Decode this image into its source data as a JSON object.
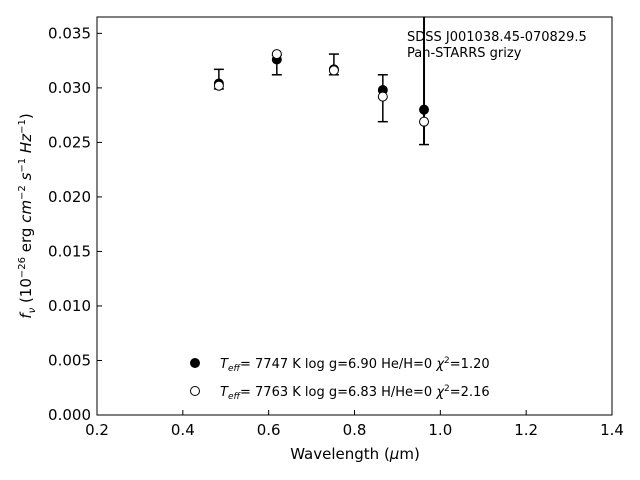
{
  "chart_data": {
    "type": "scatter",
    "xlabel": "Wavelength (μm)",
    "ylabel": "f_ν (10^-26 erg cm^-2 s^-1 Hz^-1)",
    "xlim": [
      0.2,
      1.4
    ],
    "ylim": [
      0.0,
      0.0365
    ],
    "xticks": [
      0.2,
      0.4,
      0.6,
      0.8,
      1.0,
      1.2,
      1.4
    ],
    "xtick_labels": [
      "0.2",
      "0.4",
      "0.6",
      "0.8",
      "1.0",
      "1.2",
      "1.4"
    ],
    "yticks": [
      0.0,
      0.005,
      0.01,
      0.015,
      0.02,
      0.025,
      0.03,
      0.035
    ],
    "ytick_labels": [
      "0.000",
      "0.005",
      "0.010",
      "0.015",
      "0.020",
      "0.025",
      "0.030",
      "0.035"
    ],
    "grid": false,
    "annotation": {
      "line1": "SDSS J001038.45-070829.5",
      "line2": "Pan-STARRS grizy"
    },
    "observed": {
      "x": [
        0.484,
        0.619,
        0.752,
        0.866,
        0.962
      ],
      "y": [
        0.0307,
        0.0325,
        0.0316,
        0.0298,
        0.028
      ],
      "yerr_low": [
        0.0299,
        0.0312,
        0.0312,
        0.0269,
        0.0248
      ],
      "yerr_high": [
        0.0317,
        0.033,
        0.0331,
        0.0312,
        0.0365
      ]
    },
    "series": [
      {
        "name": "He/H=0",
        "marker": "filled-circle",
        "x": [
          0.484,
          0.619,
          0.752,
          0.866,
          0.962
        ],
        "y": [
          0.0304,
          0.0326,
          0.0317,
          0.0298,
          0.028
        ]
      },
      {
        "name": "H/He=0",
        "marker": "open-circle",
        "x": [
          0.484,
          0.619,
          0.752,
          0.866,
          0.962
        ],
        "y": [
          0.0302,
          0.0331,
          0.0316,
          0.0292,
          0.0269
        ]
      }
    ],
    "legend": {
      "placement": "bottom-center",
      "entries": [
        {
          "teff": "7747 K",
          "logg": "log g=6.90",
          "comp": "He/H=0",
          "chi2": "=1.20"
        },
        {
          "teff": "7763 K",
          "logg": "log g=6.83",
          "comp": "H/He=0",
          "chi2": "=2.16"
        }
      ]
    }
  }
}
